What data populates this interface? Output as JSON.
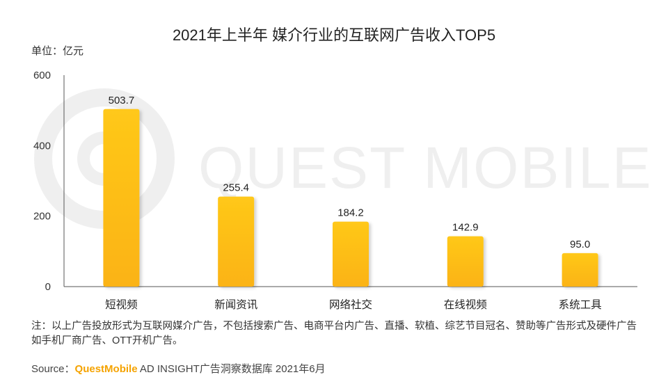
{
  "title": "2021年上半年 媒介行业的互联网广告收入TOP5",
  "unit_label": "单位：亿元",
  "watermark": "QUEST MOBILE",
  "note": "注：以上广告投放形式为互联网媒介广告，不包括搜索广告、电商平台内广告、直播、软植、综艺节目冠名、赞助等广告形式及硬件广告如手机厂商广告、OTT开机广告。",
  "source": {
    "prefix": "Source：",
    "brand": "QuestMobile",
    "rest": " AD INSIGHT广告洞察数据库 2021年6月"
  },
  "colors": {
    "bar_top": "#ffc81a",
    "bar_bottom": "#fbb312",
    "axis": "#555555",
    "brand": "#f5a300"
  },
  "chart_data": {
    "type": "bar",
    "title": "2021年上半年 媒介行业的互联网广告收入TOP5",
    "ylabel": "单位：亿元",
    "xlabel": "",
    "categories": [
      "短视频",
      "新闻资讯",
      "网络社交",
      "在线视频",
      "系统工具"
    ],
    "values": [
      503.7,
      255.4,
      184.2,
      142.9,
      95.0
    ],
    "value_labels": [
      "503.7",
      "255.4",
      "184.2",
      "142.9",
      "95.0"
    ],
    "ylim": [
      0,
      600
    ],
    "yticks": [
      0,
      200,
      400,
      600
    ],
    "grid": false,
    "legend": "none"
  }
}
